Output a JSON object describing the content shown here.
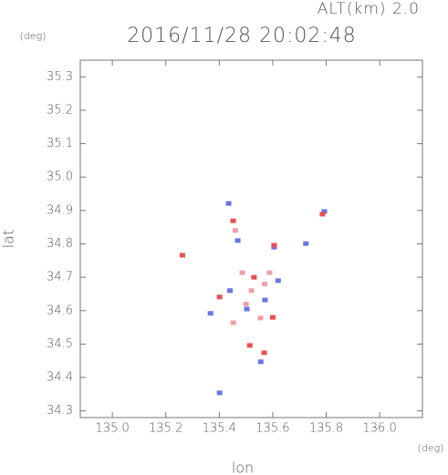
{
  "chart_data": {
    "type": "scatter",
    "title": "2016/11/28 20:02:48",
    "subtitle": "ALT(km) 2.0",
    "y_unit": "(deg)",
    "x_unit": "(deg)",
    "ylabel": "lat",
    "xlabel": "lon",
    "xlim": [
      134.88,
      136.16
    ],
    "ylim": [
      34.28,
      35.35
    ],
    "xticks": [
      {
        "value": 135.0,
        "label": "135.0"
      },
      {
        "value": 135.2,
        "label": "135.2"
      },
      {
        "value": 135.4,
        "label": "135.4"
      },
      {
        "value": 135.6,
        "label": "135.6"
      },
      {
        "value": 135.8,
        "label": "135.8"
      },
      {
        "value": 136.0,
        "label": "136.0"
      }
    ],
    "yticks": [
      {
        "value": 34.3,
        "label": "34.3"
      },
      {
        "value": 34.4,
        "label": "34.4"
      },
      {
        "value": 34.5,
        "label": "34.5"
      },
      {
        "value": 34.6,
        "label": "34.6"
      },
      {
        "value": 34.7,
        "label": "34.7"
      },
      {
        "value": 34.8,
        "label": "34.8"
      },
      {
        "value": 34.9,
        "label": "34.9"
      },
      {
        "value": 35.0,
        "label": "35.0"
      },
      {
        "value": 35.1,
        "label": "35.1"
      },
      {
        "value": 35.2,
        "label": "35.2"
      },
      {
        "value": 35.3,
        "label": "35.3"
      }
    ],
    "series": [
      {
        "color": "#f0a0a8",
        "x": [
          135.52,
          135.554,
          135.588,
          135.486,
          135.452,
          135.5,
          135.57,
          135.46
        ],
        "y": [
          34.66,
          34.578,
          34.714,
          34.714,
          34.564,
          34.62,
          34.68,
          34.84
        ]
      },
      {
        "color": "#6a74e8",
        "x": [
          135.435,
          135.555,
          135.793,
          135.401,
          135.605,
          135.724,
          135.503,
          135.571,
          135.367,
          135.469,
          135.62,
          135.44
        ],
        "y": [
          34.921,
          34.447,
          34.897,
          34.354,
          34.79,
          34.801,
          34.605,
          34.632,
          34.592,
          34.81,
          34.69,
          34.66
        ]
      },
      {
        "color": "#e85050",
        "x": [
          135.262,
          135.568,
          135.452,
          135.514,
          135.605,
          135.401,
          135.786,
          135.53,
          135.6
        ],
        "y": [
          34.766,
          34.474,
          34.869,
          34.496,
          34.796,
          34.641,
          34.889,
          34.7,
          34.58
        ]
      }
    ]
  }
}
